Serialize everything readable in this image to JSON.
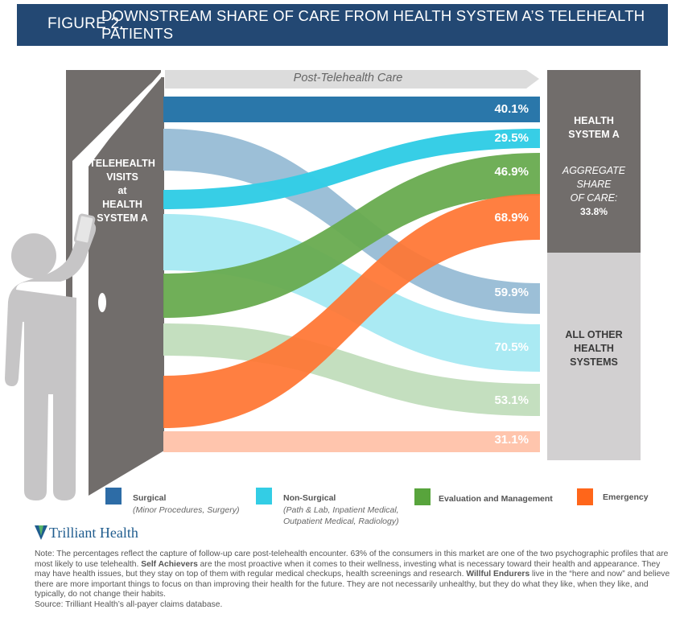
{
  "header": {
    "figure_label": "FIGURE 2.",
    "title": "DOWNSTREAM SHARE OF CARE FROM HEALTH SYSTEM A’S TELEHEALTH PATIENTS"
  },
  "door": {
    "label_lines": [
      "TELEHEALTH",
      "VISITS",
      "at",
      "HEALTH",
      "SYSTEM A"
    ]
  },
  "arrow": {
    "label": "Post-Telehealth Care"
  },
  "right_panel": {
    "health_system_a": {
      "title_lines": [
        "HEALTH",
        "SYSTEM A"
      ],
      "aggregate_label_lines": [
        "AGGREGATE",
        "SHARE",
        "OF CARE:"
      ],
      "aggregate_value": "33.8%"
    },
    "all_other": {
      "title_lines": [
        "ALL OTHER",
        "HEALTH",
        "SYSTEMS"
      ]
    }
  },
  "colors": {
    "header_bg": "#234873",
    "door": "#716d6b",
    "surgical": "#2a77aa",
    "surgical_light": "#9cbfd7",
    "non_surgical": "#33cde5",
    "non_surgical_light": "#aaeaf3",
    "em": "#68ab4f",
    "em_light": "#c4dfbf",
    "emergency": "#ff7533",
    "emergency_light": "#ffc5ad"
  },
  "chart_data": {
    "type": "sankey",
    "title": "Downstream Share of Care from Health System A's Telehealth Patients",
    "source_node": "Telehealth Visits at Health System A",
    "target_nodes": [
      "Health System A",
      "All Other Health Systems"
    ],
    "aggregate_share_health_system_a": 33.8,
    "flows": [
      {
        "category": "Surgical",
        "target": "Health System A",
        "value": 40.1,
        "label": "40.1%"
      },
      {
        "category": "Non-Surgical",
        "target": "Health System A",
        "value": 29.5,
        "label": "29.5%"
      },
      {
        "category": "Evaluation and Management",
        "target": "Health System A",
        "value": 46.9,
        "label": "46.9%"
      },
      {
        "category": "Emergency",
        "target": "Health System A",
        "value": 68.9,
        "label": "68.9%"
      },
      {
        "category": "Surgical",
        "target": "All Other Health Systems",
        "value": 59.9,
        "label": "59.9%"
      },
      {
        "category": "Non-Surgical",
        "target": "All Other Health Systems",
        "value": 70.5,
        "label": "70.5%"
      },
      {
        "category": "Evaluation and Management",
        "target": "All Other Health Systems",
        "value": 53.1,
        "label": "53.1%"
      },
      {
        "category": "Emergency",
        "target": "All Other Health Systems",
        "value": 31.1,
        "label": "31.1%"
      }
    ],
    "unit": "%"
  },
  "legend": [
    {
      "name": "Surgical",
      "sub": [
        "(Minor Procedures, Surgery)"
      ],
      "color": "#2d6ca6"
    },
    {
      "name": "Non-Surgical",
      "sub": [
        "(Path & Lab, Inpatient Medical,",
        "Outpatient Medical, Radiology)"
      ],
      "color": "#33cde5"
    },
    {
      "name": "Evaluation and Management",
      "sub": [],
      "color": "#58a43c"
    },
    {
      "name": "Emergency",
      "sub": [],
      "color": "#ff661a"
    }
  ],
  "logo": {
    "text": "Trilliant Health"
  },
  "note": {
    "p1": "Note: The percentages reflect the capture of follow-up care post-telehealth encounter. 63% of the consumers in this market are one of the two psychographic profiles that are most likely to use telehealth. ",
    "b1": "Self Achievers",
    "p2": " are the most proactive when it comes to their wellness, investing what is necessary toward their health and appearance. They may have health issues, but they stay on top of them with regular medical checkups, health screenings and research. ",
    "b2": "Willful Endurers",
    "p3": " live in the “here and now” and believe there are more important things to focus on than improving their health for the future. They are not necessarily unhealthy, but they do what they like, when they like, and typically, do not change their habits.",
    "source": "Source: Trilliant Health’s all-payer claims database."
  }
}
